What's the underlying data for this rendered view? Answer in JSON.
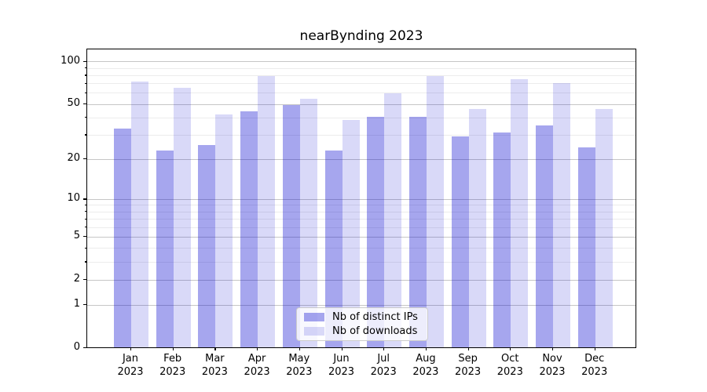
{
  "title": "nearBynding 2023",
  "chart_data": {
    "type": "bar",
    "title": "nearBynding 2023",
    "categories": [
      "Jan",
      "Feb",
      "Mar",
      "Apr",
      "May",
      "Jun",
      "Jul",
      "Aug",
      "Sep",
      "Oct",
      "Nov",
      "Dec"
    ],
    "year_label": "2023",
    "series": [
      {
        "name": "Nb of distinct IPs",
        "color": "rgba(0,0,205,0.35)",
        "color_hex": "#a6a6ed",
        "values": [
          33,
          23,
          25,
          44,
          49,
          23,
          40,
          40,
          29,
          31,
          35,
          24
        ]
      },
      {
        "name": "Nb of downloads",
        "color": "rgba(0,0,205,0.15)",
        "color_hex": "#d9d9f7",
        "values": [
          72,
          65,
          42,
          78,
          54,
          38,
          59,
          78,
          46,
          75,
          70,
          46
        ]
      }
    ],
    "xlabel": "",
    "ylabel": "",
    "yscale": "log1p",
    "ylim": [
      0,
      122.6
    ],
    "yticks": [
      0,
      1,
      2,
      5,
      10,
      20,
      50,
      100
    ],
    "yticks_minor": [
      3,
      4,
      6,
      7,
      8,
      9,
      30,
      40,
      60,
      70,
      80,
      90
    ],
    "grid": true,
    "legend_position": "lower center"
  }
}
